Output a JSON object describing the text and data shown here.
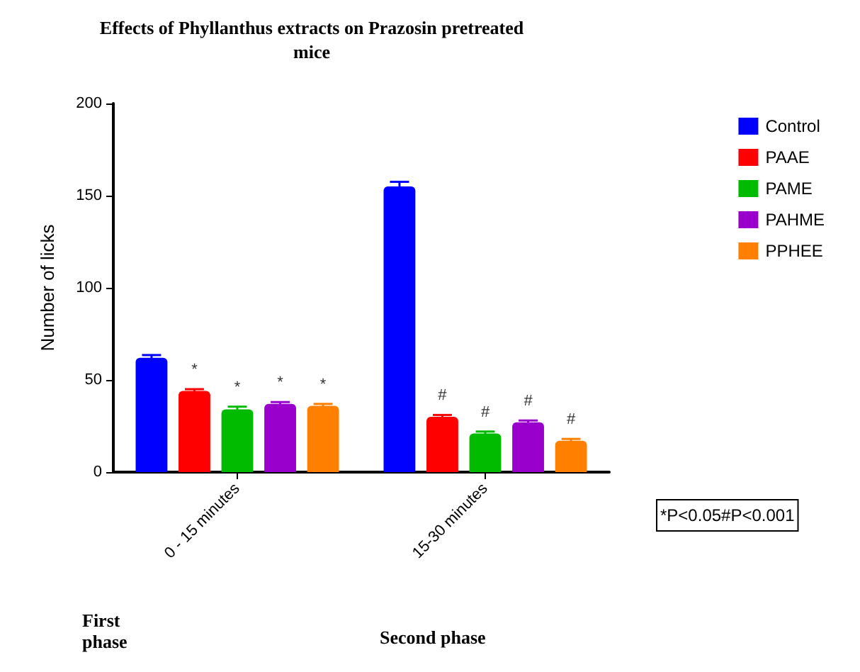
{
  "chart_data": {
    "type": "bar",
    "title": "Effects of Phyllanthus extracts on Prazosin pretreated\nmice",
    "ylabel": "Number of licks",
    "categories": [
      "0 - 15 minutes",
      "15-30 minutes"
    ],
    "series": [
      {
        "name": "Control",
        "color": "#0000ff",
        "values": [
          62,
          155
        ],
        "errors": [
          1.5,
          2.5
        ]
      },
      {
        "name": "PAAE",
        "color": "#ff0000",
        "values": [
          44,
          30
        ],
        "errors": [
          1,
          1
        ],
        "value_labels": [
          "*",
          "#"
        ]
      },
      {
        "name": "PAME",
        "color": "#00bb00",
        "values": [
          34,
          21
        ],
        "errors": [
          1.5,
          1
        ],
        "value_labels": [
          "*",
          "#"
        ]
      },
      {
        "name": "PAHME",
        "color": "#9900cc",
        "values": [
          37,
          27
        ],
        "errors": [
          1,
          1
        ],
        "value_labels": [
          "*",
          "#"
        ]
      },
      {
        "name": "PPHEE",
        "color": "#ff8000",
        "values": [
          36,
          17
        ],
        "errors": [
          1,
          1
        ],
        "value_labels": [
          "*",
          "#"
        ]
      }
    ],
    "ylim": [
      0,
      200
    ],
    "yticks": [
      0,
      50,
      100,
      150,
      200
    ],
    "grid": false,
    "legend": "top right",
    "annotations": [
      "First\nphase",
      "Second phase",
      "*P<0.05#P<0.001"
    ]
  }
}
